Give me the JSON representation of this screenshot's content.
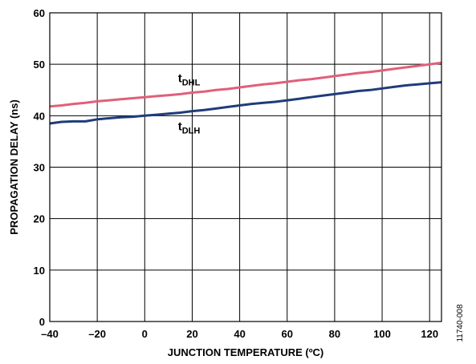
{
  "chart_data": {
    "type": "line",
    "xlabel": "JUNCTION TEMPERATURE (ºC)",
    "ylabel": "PROPAGATION DELAY (ns)",
    "xlim": [
      -40,
      125
    ],
    "ylim": [
      0,
      60
    ],
    "xticks": [
      -40,
      -20,
      0,
      20,
      40,
      60,
      80,
      100,
      120
    ],
    "yticks": [
      0,
      10,
      20,
      30,
      40,
      50,
      60
    ],
    "xtick_labels": [
      "–40",
      "–20",
      "0",
      "20",
      "40",
      "60",
      "80",
      "100",
      "120"
    ],
    "ytick_labels": [
      "0",
      "10",
      "20",
      "30",
      "40",
      "50",
      "60"
    ],
    "grid": true,
    "series": [
      {
        "label_main": "t",
        "label_sub": "DHL",
        "color": "#e0607a",
        "x": [
          -40,
          -35,
          -30,
          -25,
          -20,
          -15,
          -10,
          -5,
          0,
          5,
          10,
          15,
          20,
          25,
          30,
          35,
          40,
          45,
          50,
          55,
          60,
          65,
          70,
          75,
          80,
          85,
          90,
          95,
          100,
          105,
          110,
          115,
          120,
          125
        ],
        "values": [
          41.8,
          42.0,
          42.3,
          42.5,
          42.8,
          43.0,
          43.2,
          43.4,
          43.6,
          43.8,
          44.0,
          44.2,
          44.5,
          44.7,
          45.0,
          45.2,
          45.5,
          45.8,
          46.1,
          46.3,
          46.6,
          46.9,
          47.1,
          47.4,
          47.7,
          48.0,
          48.3,
          48.5,
          48.8,
          49.1,
          49.4,
          49.7,
          50.0,
          50.3
        ]
      },
      {
        "label_main": "t",
        "label_sub": "DLH",
        "color": "#1f3c7a",
        "x": [
          -40,
          -35,
          -30,
          -25,
          -20,
          -15,
          -10,
          -5,
          0,
          5,
          10,
          15,
          20,
          25,
          30,
          35,
          40,
          45,
          50,
          55,
          60,
          65,
          70,
          75,
          80,
          85,
          90,
          95,
          100,
          105,
          110,
          115,
          120,
          125
        ],
        "values": [
          38.5,
          38.8,
          38.9,
          38.9,
          39.3,
          39.5,
          39.7,
          39.8,
          40.0,
          40.2,
          40.4,
          40.6,
          40.9,
          41.1,
          41.4,
          41.7,
          42.0,
          42.3,
          42.5,
          42.7,
          43.0,
          43.3,
          43.6,
          43.9,
          44.2,
          44.5,
          44.8,
          45.0,
          45.3,
          45.6,
          45.9,
          46.1,
          46.3,
          46.5
        ]
      }
    ]
  },
  "figure_id": "11740-008"
}
